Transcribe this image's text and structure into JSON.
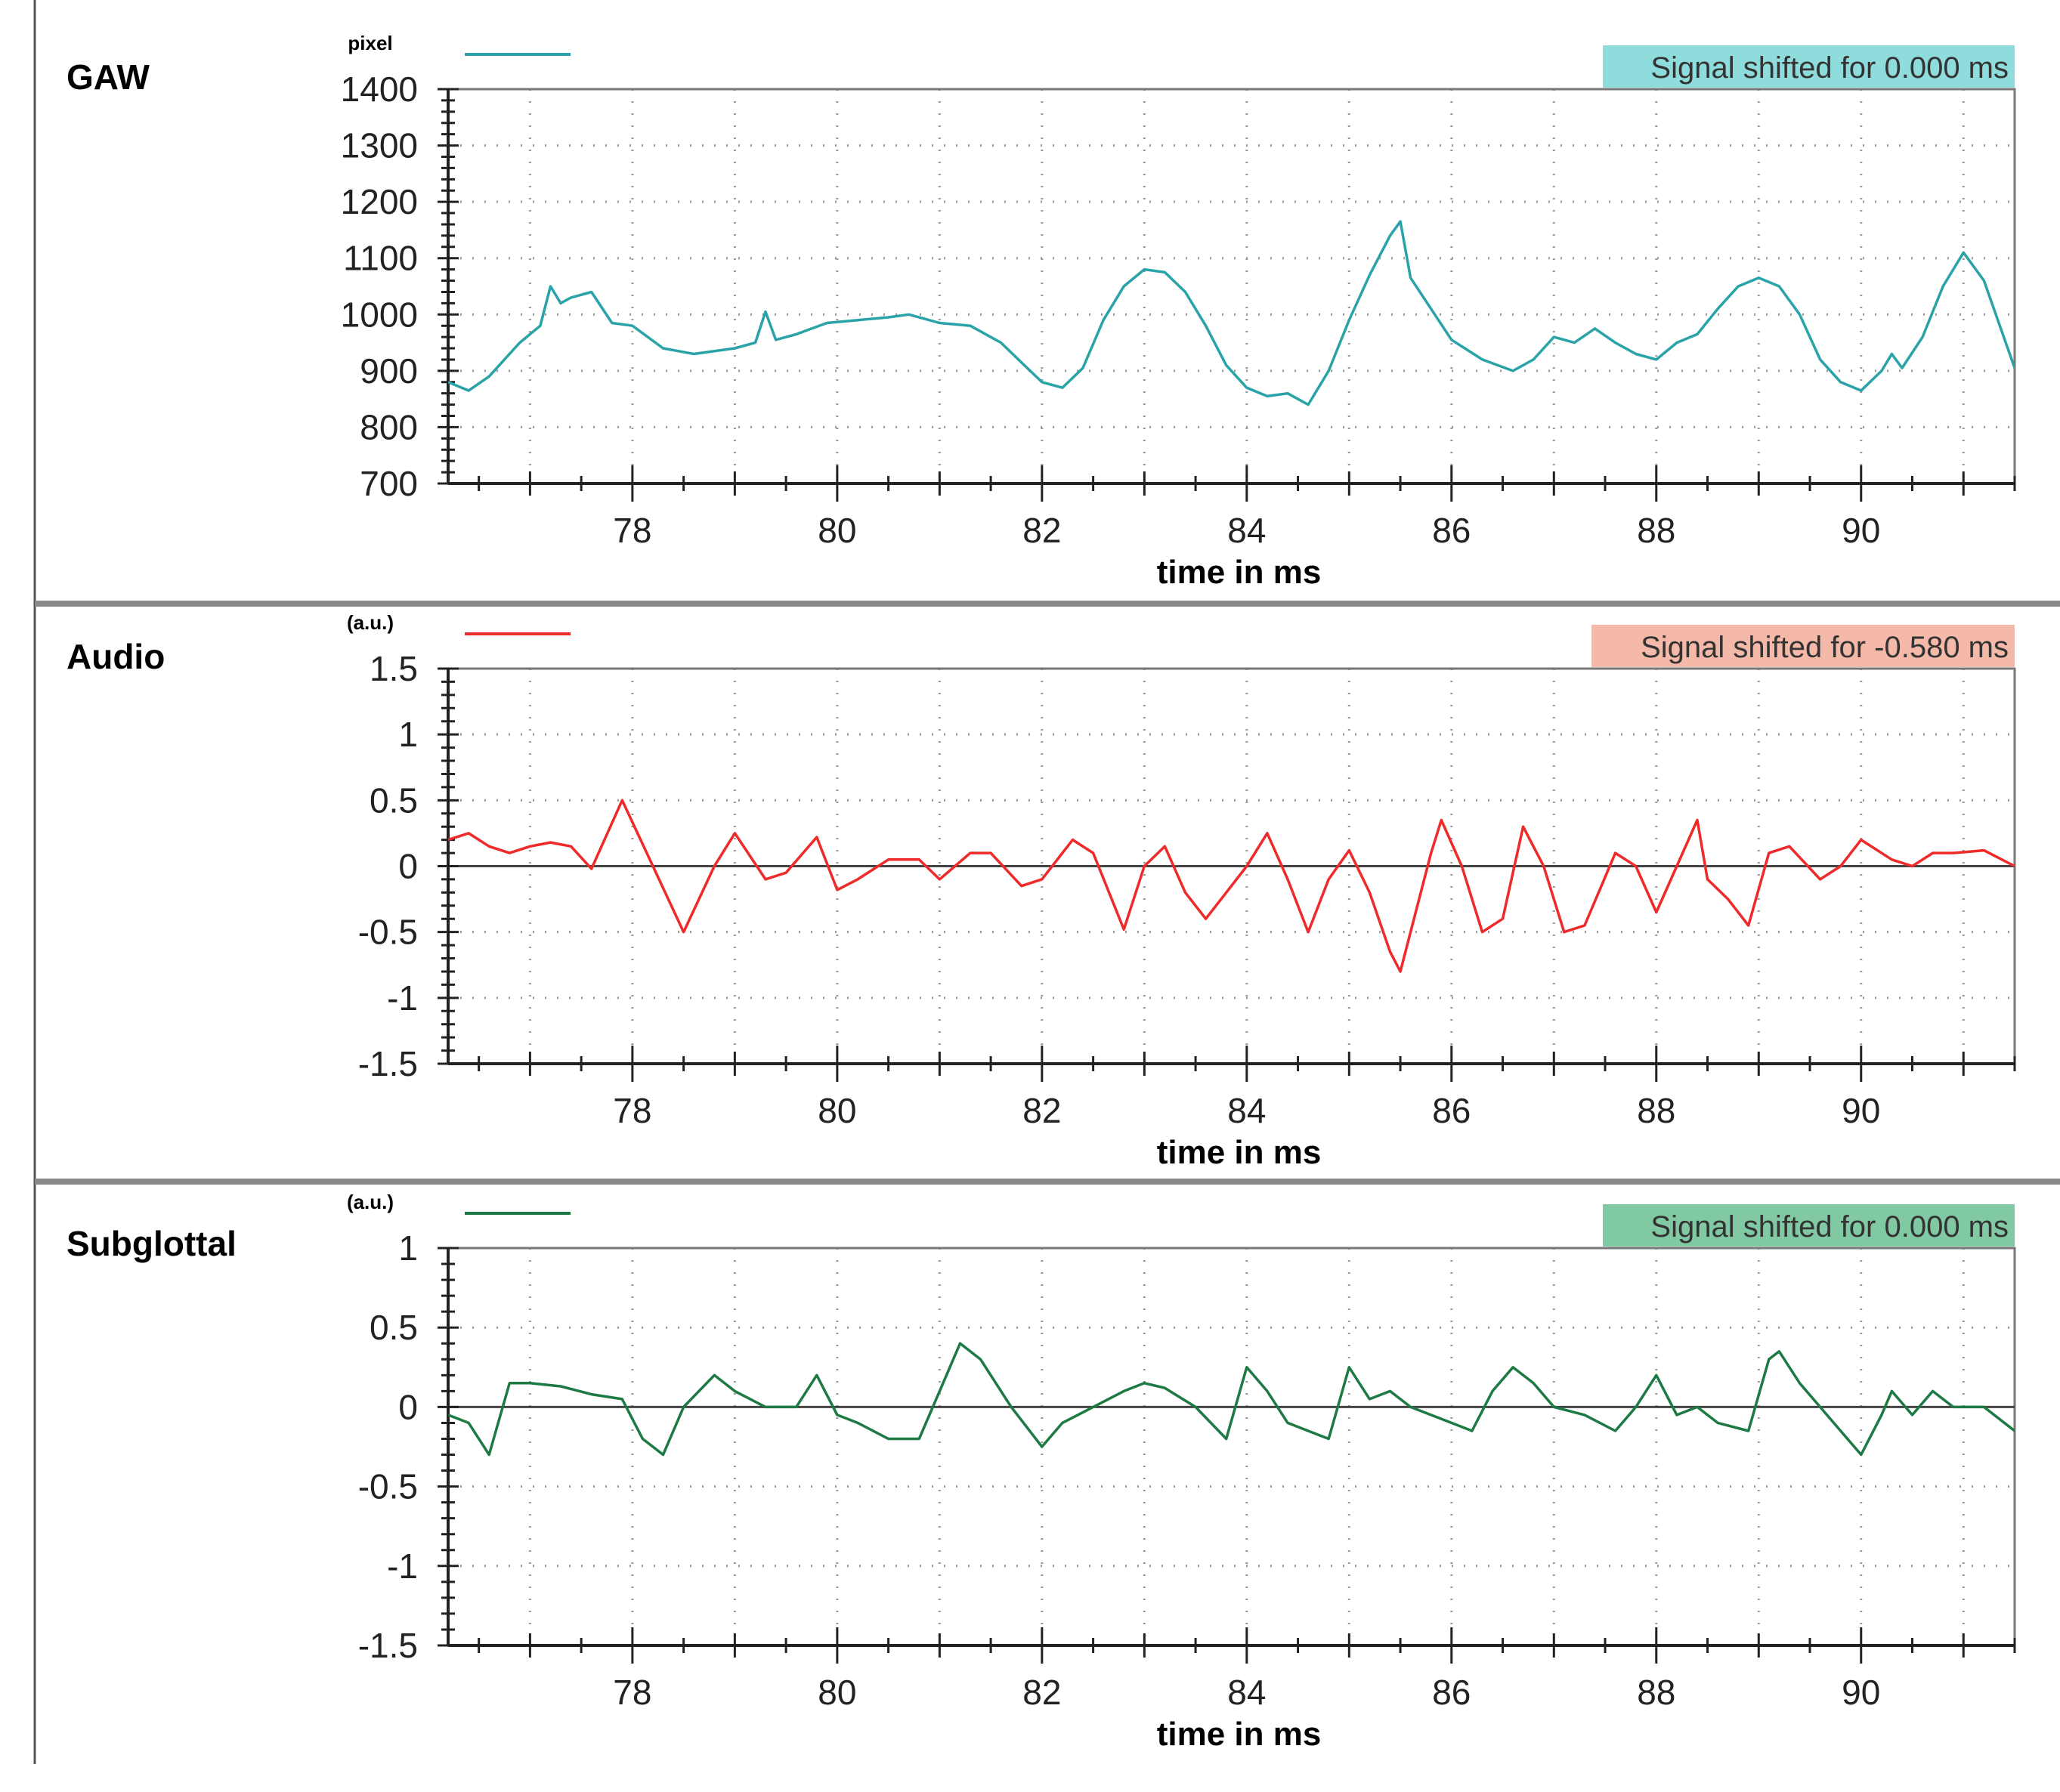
{
  "chart_data": [
    {
      "type": "line",
      "title": "GAW",
      "unit": "pixel",
      "xlabel": "time in ms",
      "xlim": [
        76.2,
        91.5
      ],
      "ylim": [
        700,
        1400
      ],
      "xticks": [
        78,
        80,
        82,
        84,
        86,
        88,
        90
      ],
      "yticks": [
        1400,
        1300,
        1200,
        1100,
        1000,
        900,
        800,
        700
      ],
      "ytick_labels": [
        "1400",
        "1300",
        "1200",
        "1100",
        "1000",
        "900",
        "800",
        "700"
      ],
      "zero_line": false,
      "badge": "Signal shifted for 0.000 ms",
      "badge_color": "#8fdcdc",
      "series_color": "#2aa3a8",
      "series": [
        {
          "name": "GAW",
          "x": [
            76.2,
            76.4,
            76.6,
            76.9,
            77.1,
            77.2,
            77.3,
            77.4,
            77.6,
            77.8,
            78.0,
            78.3,
            78.6,
            79.0,
            79.2,
            79.3,
            79.4,
            79.6,
            79.9,
            80.2,
            80.5,
            80.7,
            81.0,
            81.3,
            81.6,
            81.8,
            82.0,
            82.2,
            82.4,
            82.6,
            82.8,
            83.0,
            83.2,
            83.4,
            83.6,
            83.8,
            84.0,
            84.2,
            84.4,
            84.6,
            84.8,
            85.0,
            85.2,
            85.4,
            85.5,
            85.6,
            85.8,
            86.0,
            86.3,
            86.6,
            86.8,
            87.0,
            87.2,
            87.4,
            87.6,
            87.8,
            88.0,
            88.2,
            88.4,
            88.6,
            88.8,
            89.0,
            89.2,
            89.4,
            89.6,
            89.8,
            90.0,
            90.2,
            90.3,
            90.4,
            90.6,
            90.8,
            91.0,
            91.2,
            91.5
          ],
          "values": [
            880,
            865,
            890,
            950,
            980,
            1050,
            1020,
            1030,
            1040,
            985,
            980,
            940,
            930,
            940,
            950,
            1005,
            955,
            965,
            985,
            990,
            995,
            1000,
            985,
            980,
            950,
            915,
            880,
            870,
            905,
            990,
            1050,
            1080,
            1075,
            1040,
            980,
            910,
            870,
            855,
            860,
            840,
            900,
            990,
            1070,
            1140,
            1165,
            1065,
            1010,
            955,
            920,
            900,
            920,
            960,
            950,
            975,
            950,
            930,
            920,
            950,
            965,
            1010,
            1050,
            1065,
            1050,
            1000,
            920,
            880,
            865,
            900,
            930,
            905,
            960,
            1050,
            1110,
            1060,
            905
          ]
        }
      ]
    },
    {
      "type": "line",
      "title": "Audio",
      "unit": "(a.u.)",
      "xlabel": "time in ms",
      "xlim": [
        76.2,
        91.5
      ],
      "ylim": [
        -1.5,
        1.5
      ],
      "xticks": [
        78,
        80,
        82,
        84,
        86,
        88,
        90
      ],
      "yticks": [
        1.5,
        1,
        0.5,
        0,
        -0.5,
        -1,
        -1.5
      ],
      "ytick_labels": [
        "1.5",
        "1",
        "0.5",
        "0",
        "-0.5",
        "-1",
        "-1.5"
      ],
      "zero_line": true,
      "badge": "Signal shifted for -0.580 ms",
      "badge_color": "#f5b9aa",
      "series_color": "#ee2a2a",
      "series": [
        {
          "name": "Audio",
          "x": [
            76.2,
            76.4,
            76.6,
            76.8,
            77.0,
            77.2,
            77.4,
            77.6,
            77.9,
            78.2,
            78.5,
            78.8,
            79.0,
            79.3,
            79.5,
            79.8,
            80.0,
            80.2,
            80.5,
            80.8,
            81.0,
            81.3,
            81.5,
            81.8,
            82.0,
            82.3,
            82.5,
            82.8,
            83.0,
            83.2,
            83.4,
            83.6,
            83.8,
            84.0,
            84.2,
            84.4,
            84.6,
            84.8,
            85.0,
            85.2,
            85.4,
            85.5,
            85.6,
            85.8,
            85.9,
            86.1,
            86.3,
            86.5,
            86.7,
            86.9,
            87.1,
            87.3,
            87.6,
            87.8,
            88.0,
            88.2,
            88.4,
            88.5,
            88.7,
            88.9,
            89.1,
            89.3,
            89.6,
            89.8,
            90.0,
            90.3,
            90.5,
            90.7,
            90.9,
            91.2,
            91.5
          ],
          "values": [
            0.2,
            0.25,
            0.15,
            0.1,
            0.15,
            0.18,
            0.15,
            -0.02,
            0.5,
            0.0,
            -0.5,
            0.0,
            0.25,
            -0.1,
            -0.05,
            0.22,
            -0.18,
            -0.1,
            0.05,
            0.05,
            -0.1,
            0.1,
            0.1,
            -0.15,
            -0.1,
            0.2,
            0.1,
            -0.48,
            0.0,
            0.15,
            -0.2,
            -0.4,
            -0.2,
            0.0,
            0.25,
            -0.1,
            -0.5,
            -0.1,
            0.12,
            -0.2,
            -0.65,
            -0.8,
            -0.5,
            0.1,
            0.35,
            0.0,
            -0.5,
            -0.4,
            0.3,
            0.0,
            -0.5,
            -0.45,
            0.1,
            0.0,
            -0.35,
            0.0,
            0.35,
            -0.1,
            -0.25,
            -0.45,
            0.1,
            0.15,
            -0.1,
            0.0,
            0.2,
            0.05,
            0.0,
            0.1,
            0.1,
            0.12,
            0.0
          ]
        }
      ]
    },
    {
      "type": "line",
      "title": "Subglottal",
      "unit": "(a.u.)",
      "xlabel": "time in ms",
      "xlim": [
        76.2,
        91.5
      ],
      "ylim": [
        -1.5,
        1.0
      ],
      "xticks": [
        78,
        80,
        82,
        84,
        86,
        88,
        90
      ],
      "yticks": [
        1,
        0.5,
        0,
        -0.5,
        -1,
        -1.5
      ],
      "ytick_labels": [
        "1",
        "0.5",
        "0",
        "-0.5",
        "-1",
        "-1.5"
      ],
      "zero_line": true,
      "badge": "Signal shifted for 0.000 ms",
      "badge_color": "#80c9a3",
      "series_color": "#1e7a44",
      "series": [
        {
          "name": "Subglottal",
          "x": [
            76.2,
            76.4,
            76.6,
            76.8,
            77.0,
            77.3,
            77.6,
            77.9,
            78.1,
            78.3,
            78.5,
            78.8,
            79.0,
            79.3,
            79.6,
            79.8,
            80.0,
            80.2,
            80.5,
            80.8,
            81.0,
            81.2,
            81.4,
            81.7,
            82.0,
            82.2,
            82.5,
            82.8,
            83.0,
            83.2,
            83.5,
            83.8,
            84.0,
            84.2,
            84.4,
            84.6,
            84.8,
            85.0,
            85.2,
            85.4,
            85.6,
            85.8,
            86.0,
            86.2,
            86.4,
            86.6,
            86.8,
            87.0,
            87.3,
            87.6,
            87.8,
            88.0,
            88.2,
            88.4,
            88.6,
            88.9,
            89.1,
            89.2,
            89.4,
            89.6,
            89.8,
            90.0,
            90.2,
            90.3,
            90.5,
            90.7,
            90.9,
            91.2,
            91.5
          ],
          "values": [
            -0.05,
            -0.1,
            -0.3,
            0.15,
            0.15,
            0.13,
            0.08,
            0.05,
            -0.2,
            -0.3,
            0.0,
            0.2,
            0.1,
            0.0,
            0.0,
            0.2,
            -0.05,
            -0.1,
            -0.2,
            -0.2,
            0.1,
            0.4,
            0.3,
            0.0,
            -0.25,
            -0.1,
            0.0,
            0.1,
            0.15,
            0.12,
            0.0,
            -0.2,
            0.25,
            0.1,
            -0.1,
            -0.15,
            -0.2,
            0.25,
            0.05,
            0.1,
            0.0,
            -0.05,
            -0.1,
            -0.15,
            0.1,
            0.25,
            0.15,
            0.0,
            -0.05,
            -0.15,
            0.0,
            0.2,
            -0.05,
            0.0,
            -0.1,
            -0.15,
            0.3,
            0.35,
            0.15,
            0.0,
            -0.15,
            -0.3,
            -0.05,
            0.1,
            -0.05,
            0.1,
            0.0,
            0.0,
            -0.15
          ]
        }
      ]
    }
  ]
}
